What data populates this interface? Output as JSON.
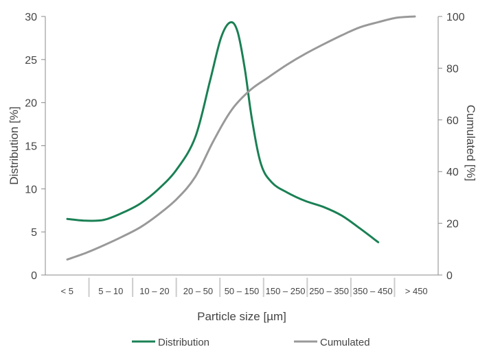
{
  "chart_data": {
    "type": "line",
    "title": "",
    "xlabel": "Particle size [µm]",
    "ylabel": "Distribution [%]",
    "y2label": "Cumulated [%]",
    "categories": [
      "< 5",
      "5 – 10",
      "10 – 20",
      "20 – 50",
      "50 – 150",
      "150 – 250",
      "250 – 350",
      "350 – 450",
      "> 450"
    ],
    "ylim": [
      0,
      30
    ],
    "y2lim": [
      0,
      100
    ],
    "yticks": [
      0,
      5,
      10,
      15,
      20,
      25,
      30
    ],
    "y2ticks": [
      0,
      20,
      40,
      60,
      80,
      100
    ],
    "grid": false,
    "legend_position": "bottom",
    "series": [
      {
        "name": "Distribution",
        "axis": "left",
        "color": "#1a8054",
        "points": [
          {
            "x": 0.0,
            "y": 6.5
          },
          {
            "x": 0.5,
            "y": 6.3
          },
          {
            "x": 1.0,
            "y": 6.4
          },
          {
            "x": 1.5,
            "y": 7.2
          },
          {
            "x": 2.0,
            "y": 8.3
          },
          {
            "x": 2.5,
            "y": 10.0
          },
          {
            "x": 3.0,
            "y": 12.3
          },
          {
            "x": 3.5,
            "y": 16.0
          },
          {
            "x": 3.9,
            "y": 22.5
          },
          {
            "x": 4.2,
            "y": 27.5
          },
          {
            "x": 4.45,
            "y": 29.3
          },
          {
            "x": 4.65,
            "y": 28.3
          },
          {
            "x": 4.85,
            "y": 24.0
          },
          {
            "x": 5.05,
            "y": 18.0
          },
          {
            "x": 5.3,
            "y": 12.8
          },
          {
            "x": 5.6,
            "y": 10.7
          },
          {
            "x": 6.0,
            "y": 9.6
          },
          {
            "x": 6.5,
            "y": 8.6
          },
          {
            "x": 7.0,
            "y": 7.9
          },
          {
            "x": 7.5,
            "y": 6.9
          },
          {
            "x": 8.0,
            "y": 5.4
          },
          {
            "x": 8.5,
            "y": 3.8
          }
        ]
      },
      {
        "name": "Cumulated",
        "axis": "right",
        "color": "#999999",
        "points": [
          {
            "x": 0.0,
            "y": 6
          },
          {
            "x": 0.5,
            "y": 8.5
          },
          {
            "x": 1.0,
            "y": 11.5
          },
          {
            "x": 1.5,
            "y": 14.8
          },
          {
            "x": 2.0,
            "y": 18.5
          },
          {
            "x": 2.5,
            "y": 23.5
          },
          {
            "x": 3.0,
            "y": 29.5
          },
          {
            "x": 3.5,
            "y": 38.0
          },
          {
            "x": 4.0,
            "y": 52.0
          },
          {
            "x": 4.5,
            "y": 64.0
          },
          {
            "x": 5.0,
            "y": 71.5
          },
          {
            "x": 5.5,
            "y": 76.5
          },
          {
            "x": 6.0,
            "y": 81.3
          },
          {
            "x": 6.5,
            "y": 85.5
          },
          {
            "x": 7.0,
            "y": 89.2
          },
          {
            "x": 7.5,
            "y": 92.7
          },
          {
            "x": 8.0,
            "y": 95.8
          },
          {
            "x": 8.5,
            "y": 97.8
          },
          {
            "x": 9.0,
            "y": 99.5
          },
          {
            "x": 9.5,
            "y": 100
          }
        ]
      }
    ],
    "colors": {
      "distribution": "#1a8054",
      "cumulated": "#999999",
      "axis": "#888888",
      "separator": "#cccccc",
      "text": "#444444"
    }
  }
}
